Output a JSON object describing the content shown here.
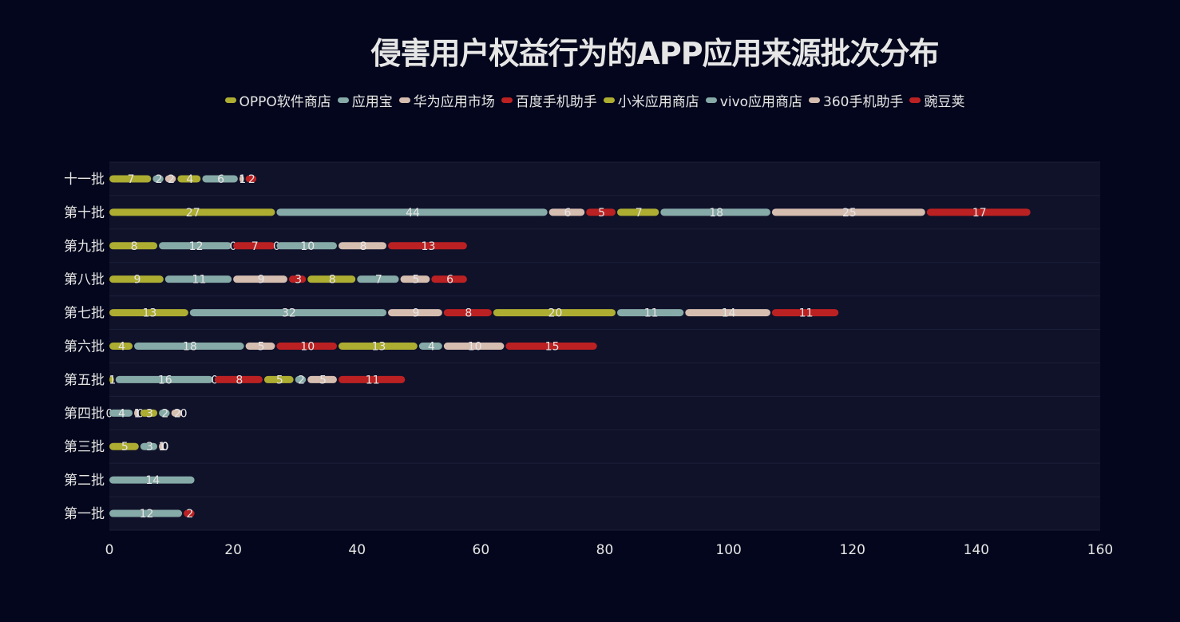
{
  "chart_data": {
    "type": "bar",
    "orientation": "horizontal",
    "stacked": true,
    "title": "侵害用户权益行为的APP应用来源批次分布",
    "categories": [
      "第一批",
      "第二批",
      "第三批",
      "第四批",
      "第五批",
      "第六批",
      "第七批",
      "第八批",
      "第九批",
      "第十批",
      "十一批"
    ],
    "series": [
      {
        "name": "OPPO软件商店",
        "color": "#adad32",
        "values": [
          0,
          0,
          5,
          0,
          1,
          4,
          13,
          9,
          8,
          27,
          7
        ]
      },
      {
        "name": "应用宝",
        "color": "#86aaa7",
        "values": [
          12,
          14,
          3,
          4,
          16,
          18,
          32,
          11,
          12,
          44,
          2
        ]
      },
      {
        "name": "华为应用市场",
        "color": "#d5bdb0",
        "values": [
          0,
          0,
          1,
          1,
          0,
          5,
          9,
          9,
          0,
          6,
          2
        ]
      },
      {
        "name": "百度手机助手",
        "color": "#bb2122",
        "values": [
          2,
          0,
          0,
          0,
          8,
          10,
          8,
          3,
          7,
          5,
          0
        ]
      },
      {
        "name": "小米应用商店",
        "color": "#adad32",
        "values": [
          0,
          0,
          0,
          3,
          5,
          13,
          20,
          8,
          0,
          7,
          4
        ]
      },
      {
        "name": "vivo应用商店",
        "color": "#86aaa7",
        "values": [
          0,
          0,
          0,
          2,
          2,
          4,
          11,
          7,
          10,
          18,
          6
        ]
      },
      {
        "name": "360手机助手",
        "color": "#d5bdb0",
        "values": [
          0,
          0,
          0,
          2,
          5,
          10,
          14,
          5,
          8,
          25,
          1
        ]
      },
      {
        "name": "豌豆荚",
        "color": "#bb2122",
        "values": [
          0,
          0,
          0,
          0,
          11,
          15,
          11,
          6,
          13,
          17,
          2
        ]
      }
    ],
    "xlim": [
      0,
      160
    ],
    "xticks": [
      0,
      20,
      40,
      60,
      80,
      100,
      120,
      140,
      160
    ],
    "legend_position": "top-center",
    "data_labels": true,
    "grid": false,
    "background": "#03061c",
    "plot_background": "#10122a"
  }
}
